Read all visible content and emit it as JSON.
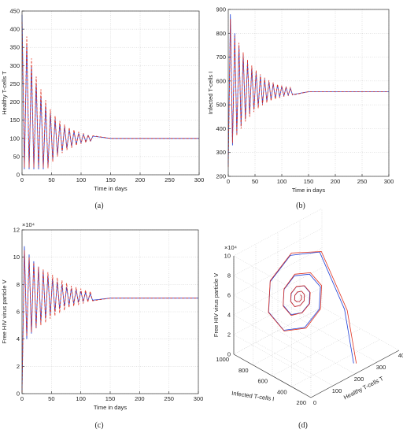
{
  "chart_data": [
    {
      "type": "line",
      "ylabel": "Healthy T-cells T",
      "xlabel": "Time in days",
      "caption": "(a)",
      "x": [
        0,
        4,
        8,
        12,
        16,
        20,
        24,
        28,
        32,
        36,
        40,
        44,
        48,
        52,
        56,
        60,
        64,
        68,
        72,
        76,
        80,
        84,
        88,
        92,
        96,
        100,
        104,
        108,
        112,
        116,
        120,
        150,
        200,
        250,
        300
      ],
      "series": [
        {
          "color": "#1f3fd6",
          "style": "solid",
          "values": [
            440,
            15,
            360,
            15,
            300,
            15,
            253,
            15,
            217,
            15,
            190,
            22,
            169,
            40,
            153,
            54,
            140,
            65,
            131,
            73,
            124,
            79,
            118,
            84,
            114,
            88,
            111,
            91,
            108,
            93,
            106,
            100,
            100,
            100,
            100
          ]
        },
        {
          "color": "#e0301e",
          "style": "dashed",
          "values": [
            420,
            20,
            380,
            20,
            320,
            20,
            270,
            20,
            235,
            20,
            205,
            18,
            180,
            35,
            162,
            50,
            148,
            60,
            138,
            68,
            130,
            74,
            124,
            80,
            118,
            85,
            114,
            88,
            110,
            91,
            107,
            100,
            100,
            100,
            100
          ]
        }
      ],
      "xlim": [
        0,
        300
      ],
      "xticks": [
        0,
        50,
        100,
        150,
        200,
        250,
        300
      ],
      "ylim": [
        0,
        450
      ],
      "yticks": [
        0,
        50,
        100,
        150,
        200,
        250,
        300,
        350,
        400,
        450
      ],
      "grid": true
    },
    {
      "type": "line",
      "ylabel": "Infected T-cells I",
      "xlabel": "Time in days",
      "caption": "(b)",
      "x": [
        0,
        4,
        8,
        12,
        16,
        20,
        24,
        28,
        32,
        36,
        40,
        44,
        48,
        52,
        56,
        60,
        64,
        68,
        72,
        76,
        80,
        84,
        88,
        92,
        96,
        100,
        104,
        108,
        112,
        116,
        120,
        150,
        200,
        250,
        300
      ],
      "series": [
        {
          "color": "#1f3fd6",
          "style": "solid",
          "values": [
            250,
            880,
            330,
            800,
            380,
            750,
            410,
            710,
            440,
            680,
            460,
            655,
            480,
            635,
            495,
            620,
            505,
            607,
            515,
            597,
            522,
            589,
            528,
            582,
            533,
            577,
            537,
            573,
            540,
            569,
            543,
            555,
            555,
            555,
            555
          ]
        },
        {
          "color": "#e0301e",
          "style": "dashed",
          "values": [
            240,
            860,
            340,
            790,
            370,
            760,
            400,
            720,
            430,
            690,
            450,
            665,
            470,
            645,
            485,
            628,
            498,
            614,
            508,
            603,
            516,
            594,
            523,
            587,
            529,
            581,
            534,
            576,
            538,
            572,
            541,
            555,
            555,
            555,
            555
          ]
        }
      ],
      "xlim": [
        0,
        300
      ],
      "xticks": [
        0,
        50,
        100,
        150,
        200,
        250,
        300
      ],
      "ylim": [
        200,
        900
      ],
      "yticks": [
        200,
        300,
        400,
        500,
        600,
        700,
        800,
        900
      ],
      "grid": true
    },
    {
      "type": "line",
      "ylabel": "Free HIV virus particle V",
      "xlabel": "Time in days",
      "caption": "(c)",
      "exponent": "×10⁴",
      "x": [
        0,
        4,
        8,
        12,
        16,
        20,
        24,
        28,
        32,
        36,
        40,
        44,
        48,
        52,
        56,
        60,
        64,
        68,
        72,
        76,
        80,
        84,
        88,
        92,
        96,
        100,
        104,
        108,
        112,
        116,
        120,
        150,
        200,
        250,
        300
      ],
      "series": [
        {
          "color": "#1f3fd6",
          "style": "solid",
          "values": [
            0.2,
            10.8,
            4.0,
            10.2,
            4.4,
            9.7,
            4.8,
            9.3,
            5.2,
            9.0,
            5.5,
            8.7,
            5.8,
            8.4,
            6.0,
            8.2,
            6.2,
            8.0,
            6.4,
            7.8,
            6.5,
            7.7,
            6.6,
            7.6,
            6.7,
            7.5,
            6.75,
            7.4,
            6.8,
            7.3,
            6.85,
            7,
            7,
            7,
            7
          ]
        },
        {
          "color": "#e0301e",
          "style": "dashed",
          "values": [
            0.1,
            10.5,
            4.2,
            10.0,
            4.5,
            9.6,
            4.8,
            9.3,
            5.0,
            9.1,
            5.2,
            8.9,
            5.5,
            8.7,
            5.7,
            8.5,
            5.9,
            8.3,
            6.1,
            8.1,
            6.3,
            7.9,
            6.4,
            7.8,
            6.5,
            7.7,
            6.6,
            7.6,
            6.7,
            7.5,
            6.8,
            7,
            7,
            7,
            7
          ]
        }
      ],
      "xlim": [
        0,
        300
      ],
      "xticks": [
        0,
        50,
        100,
        150,
        200,
        250,
        300
      ],
      "ylim": [
        0,
        12
      ],
      "yticks": [
        0,
        2,
        4,
        6,
        8,
        10,
        12
      ],
      "grid": true
    },
    {
      "type": "line3d",
      "xlabel": "Healthy T-cells T",
      "ylabel": "Infected T-cells I",
      "zlabel": "Free HIV virus particle V",
      "caption": "(d)",
      "exponent": "×10⁴",
      "series": [
        {
          "color": "#1f3fd6",
          "style": "solid",
          "x": [
            220,
            240,
            195,
            162,
            100,
            48,
            32,
            56,
            100,
            138,
            149,
            132,
            100,
            73,
            65,
            77,
            100,
            119,
            125,
            116,
            100,
            86,
            82,
            88,
            100,
            110,
            113,
            108,
            100,
            93,
            91,
            94,
            100,
            105,
            107
          ],
          "y": [
            260,
            400,
            555,
            783,
            851,
            748,
            555,
            392,
            343,
            417,
            555,
            672,
            707,
            654,
            555,
            471,
            446,
            484,
            555,
            615,
            633,
            606,
            555,
            512,
            499,
            519,
            555,
            586,
            595,
            581,
            555,
            533,
            526,
            536,
            555
          ],
          "z": [
            0.5,
            5.0,
            10.5,
            9.3,
            7,
            5.1,
            4.5,
            5.4,
            7,
            8.4,
            8.8,
            8.2,
            7,
            6.0,
            5.7,
            6.2,
            7,
            7.7,
            7.9,
            7.6,
            7,
            6.5,
            6.3,
            6.6,
            7,
            7.4,
            7.5,
            7.3,
            7,
            6.7,
            6.7,
            6.8,
            7,
            7.2,
            7.2
          ]
        },
        {
          "color": "#e0301e",
          "style": "solid",
          "x": [
            230,
            250,
            205,
            170,
            104,
            50,
            34,
            60,
            104,
            142,
            153,
            135,
            102,
            74,
            66,
            78,
            101,
            120,
            126,
            117,
            100,
            86,
            82,
            88,
            100,
            110,
            113,
            108,
            100,
            93,
            91,
            94,
            100,
            105,
            107
          ],
          "y": [
            255,
            395,
            560,
            790,
            860,
            755,
            555,
            388,
            338,
            414,
            555,
            676,
            712,
            657,
            555,
            469,
            443,
            482,
            555,
            616,
            635,
            607,
            555,
            511,
            498,
            518,
            555,
            587,
            596,
            582,
            555,
            533,
            526,
            536,
            555
          ],
          "z": [
            0.4,
            4.8,
            10.4,
            9.4,
            7,
            5.0,
            4.4,
            5.3,
            7,
            8.5,
            8.9,
            8.3,
            7,
            5.9,
            5.6,
            6.2,
            7,
            7.7,
            7.9,
            7.6,
            7,
            6.5,
            6.3,
            6.6,
            7,
            7.4,
            7.5,
            7.3,
            7,
            6.7,
            6.7,
            6.8,
            7,
            7.2,
            7.2
          ]
        }
      ],
      "xlim": [
        0,
        400
      ],
      "xticks": [
        0,
        100,
        200,
        300,
        400
      ],
      "ylim": [
        200,
        1000
      ],
      "yticks": [
        200,
        400,
        600,
        800,
        1000
      ],
      "zlim": [
        0,
        10
      ],
      "zticks": [
        0,
        2,
        4,
        6,
        8,
        10
      ],
      "grid": true
    }
  ]
}
